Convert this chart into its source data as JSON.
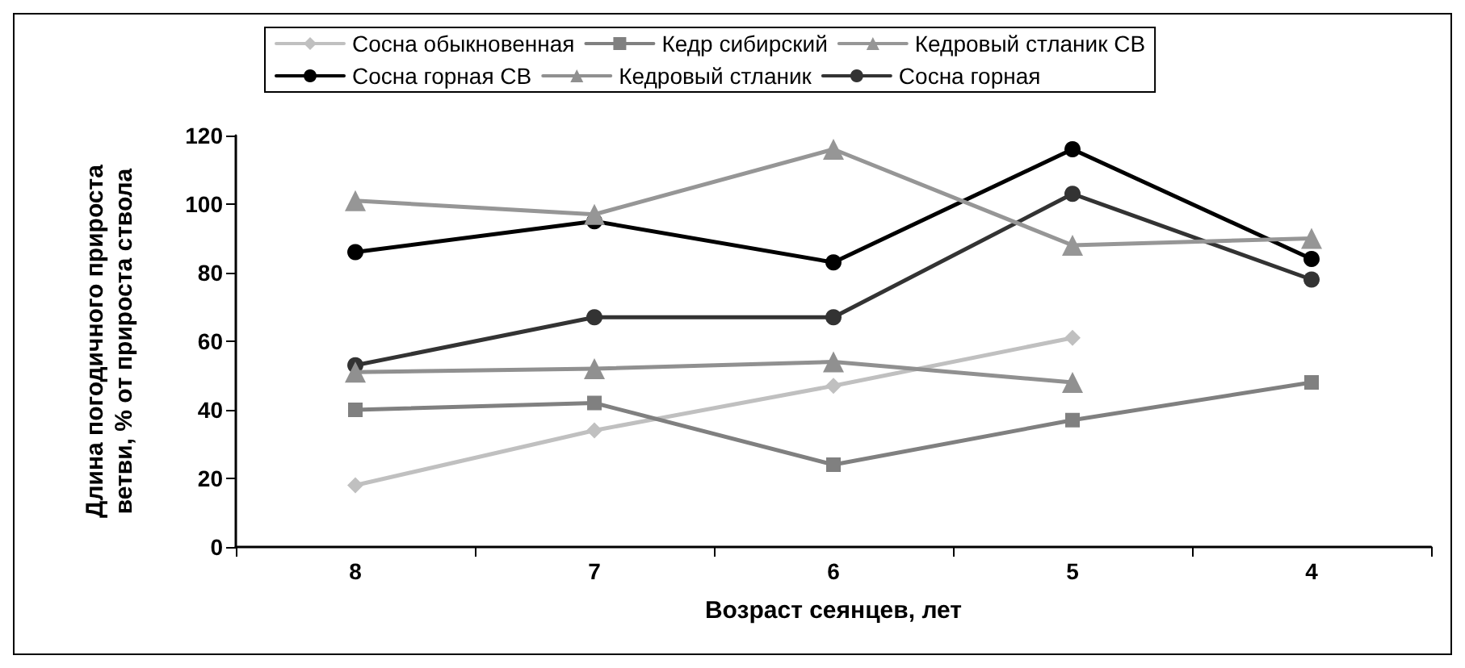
{
  "chart_data": {
    "type": "line",
    "xlabel": "Возраст сеянцев, лет",
    "ylabel": "Длина погодичного прироста\nветви, % от прироста ствола",
    "categories": [
      "8",
      "7",
      "6",
      "5",
      "4"
    ],
    "series": [
      {
        "name": "Сосна обыкновенная",
        "color": "#c0c0c0",
        "marker": "diamond",
        "values": [
          18,
          34,
          47,
          61,
          null
        ]
      },
      {
        "name": "Кедр сибирский",
        "color": "#808080",
        "marker": "square",
        "values": [
          40,
          42,
          24,
          37,
          48
        ]
      },
      {
        "name": "Кедровый стланик СВ",
        "color": "#969696",
        "marker": "triangle",
        "values": [
          101,
          97,
          116,
          88,
          90
        ]
      },
      {
        "name": "Сосна горная СВ",
        "color": "#000000",
        "marker": "circle",
        "values": [
          86,
          95,
          83,
          116,
          84
        ]
      },
      {
        "name": "Кедровый стланик",
        "color": "#909090",
        "marker": "triangle",
        "values": [
          51,
          52,
          54,
          48,
          null
        ]
      },
      {
        "name": "Сосна горная",
        "color": "#333333",
        "marker": "circle",
        "values": [
          53,
          67,
          67,
          103,
          78
        ]
      }
    ],
    "ylim": [
      0,
      120
    ],
    "yticks": [
      0,
      20,
      40,
      60,
      80,
      100,
      120
    ],
    "grid": false,
    "legend": "top",
    "line_style": "solid"
  }
}
